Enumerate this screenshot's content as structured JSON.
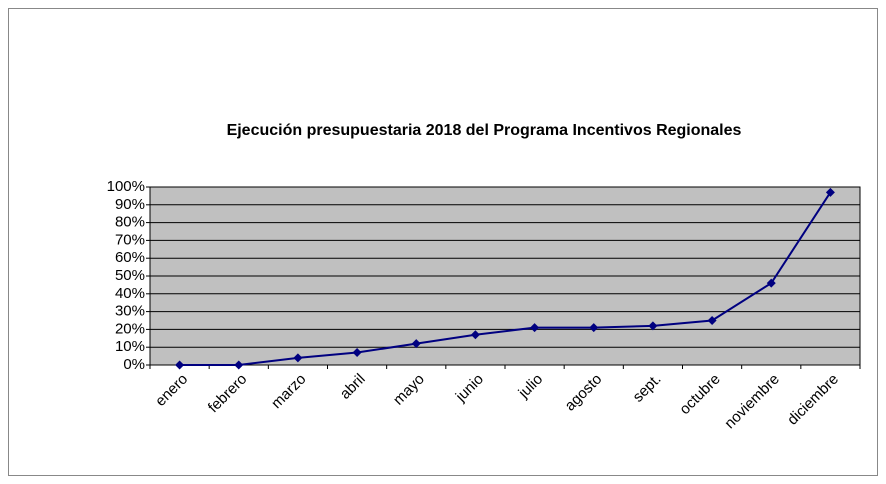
{
  "chart_data": {
    "type": "line",
    "title": "Ejecución presupuestaria 2018 del Programa Incentivos Regionales",
    "categories": [
      "enero",
      "febrero",
      "marzo",
      "abril",
      "mayo",
      "junio",
      "julio",
      "agosto",
      "sept.",
      "octubre",
      "noviembre",
      "diciembre"
    ],
    "values": [
      0,
      0,
      4,
      7,
      12,
      17,
      21,
      21,
      22,
      25,
      46,
      97
    ],
    "color": "#000080",
    "ylim": [
      0,
      100
    ],
    "yticks": [
      {
        "value": 0,
        "label": "0%"
      },
      {
        "value": 10,
        "label": "10%"
      },
      {
        "value": 20,
        "label": "20%"
      },
      {
        "value": 30,
        "label": "30%"
      },
      {
        "value": 40,
        "label": "40%"
      },
      {
        "value": 50,
        "label": "50%"
      },
      {
        "value": 60,
        "label": "60%"
      },
      {
        "value": 70,
        "label": "70%"
      },
      {
        "value": 80,
        "label": "80%"
      },
      {
        "value": 90,
        "label": "90%"
      },
      {
        "value": 100,
        "label": "100%"
      }
    ],
    "grid": true
  }
}
